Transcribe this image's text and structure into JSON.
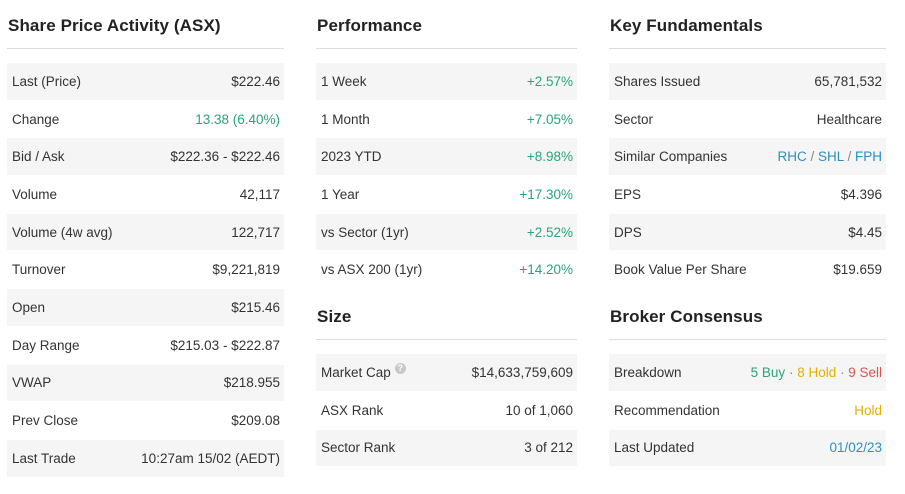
{
  "activity": {
    "title": "Share Price Activity (ASX)",
    "rows": [
      {
        "label": "Last (Price)",
        "value": "$222.46"
      },
      {
        "label": "Change",
        "value": "13.38 (6.40%)"
      },
      {
        "label": "Bid / Ask",
        "value": "$222.36 - $222.46"
      },
      {
        "label": "Volume",
        "value": "42,117"
      },
      {
        "label": "Volume (4w avg)",
        "value": "122,717"
      },
      {
        "label": "Turnover",
        "value": "$9,221,819"
      },
      {
        "label": "Open",
        "value": "$215.46"
      },
      {
        "label": "Day Range",
        "value": "$215.03 - $222.87"
      },
      {
        "label": "VWAP",
        "value": "$218.955"
      },
      {
        "label": "Prev Close",
        "value": "$209.08"
      },
      {
        "label": "Last Trade",
        "value": "10:27am 15/02 (AEDT)"
      }
    ]
  },
  "performance": {
    "title": "Performance",
    "rows": [
      {
        "label": "1 Week",
        "value": "+2.57%"
      },
      {
        "label": "1 Month",
        "value": "+7.05%"
      },
      {
        "label": "2023 YTD",
        "value": "+8.98%"
      },
      {
        "label": "1 Year",
        "value": "+17.30%"
      },
      {
        "label": "vs Sector (1yr)",
        "value": "+2.52%"
      },
      {
        "label": "vs ASX 200 (1yr)",
        "value": "+14.20%"
      }
    ]
  },
  "size": {
    "title": "Size",
    "info_icon": "?",
    "rows": [
      {
        "label": "Market Cap",
        "value": "$14,633,759,609"
      },
      {
        "label": "ASX Rank",
        "value": "10 of 1,060"
      },
      {
        "label": "Sector Rank",
        "value": "3 of 212"
      }
    ]
  },
  "fundamentals": {
    "title": "Key Fundamentals",
    "rows": [
      {
        "label": "Shares Issued",
        "value": "65,781,532"
      },
      {
        "label": "Sector",
        "value": "Healthcare"
      },
      {
        "label": "Similar Companies",
        "companies": [
          "RHC",
          "SHL",
          "FPH"
        ],
        "separator": " / "
      },
      {
        "label": "EPS",
        "value": "$4.396"
      },
      {
        "label": "DPS",
        "value": "$4.45"
      },
      {
        "label": "Book Value Per Share",
        "value": "$19.659"
      }
    ]
  },
  "broker": {
    "title": "Broker Consensus",
    "breakdown_label": "Breakdown",
    "buy": "5 Buy",
    "hold": "8 Hold",
    "sell": "9 Sell",
    "dot": " · ",
    "recommendation_label": "Recommendation",
    "recommendation": "Hold",
    "last_updated_label": "Last Updated",
    "last_updated": "01/02/23"
  },
  "colors": {
    "positive": "#2aa37a",
    "hold": "#e0b100",
    "sell": "#d9534f",
    "link": "#2e8fc3"
  }
}
